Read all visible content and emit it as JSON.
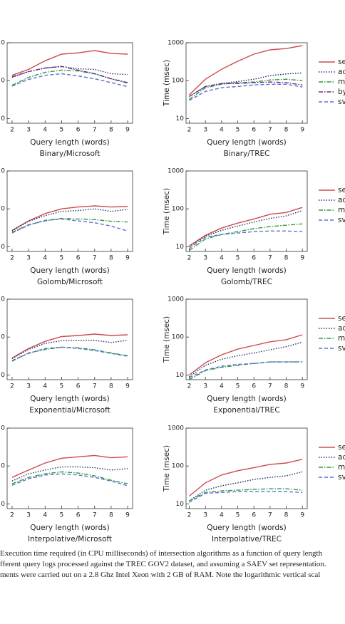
{
  "chart_data": [
    {
      "type": "line",
      "title": "Binary/Microsoft",
      "x_label": "Query length (words)",
      "x": [
        2,
        3,
        4,
        5,
        6,
        7,
        8,
        9
      ],
      "xlim": [
        1.7,
        9.3
      ],
      "xticks": [
        2,
        3,
        4,
        5,
        6,
        7,
        8,
        9
      ],
      "log_y": true,
      "ylim": [
        7.5,
        1000
      ],
      "yticks": [
        {
          "value": 1000,
          "label": "0"
        },
        {
          "value": 100,
          "label": "0"
        },
        {
          "value": 10,
          "label": "0"
        }
      ],
      "series": [
        {
          "color": "#cc4b4b",
          "style": "solid",
          "values": [
            138,
            198,
            334,
            500,
            540,
            620,
            520,
            500
          ]
        },
        {
          "color": "#1f2a66",
          "style": "dotted",
          "values": [
            122,
            173,
            215,
            236,
            206,
            198,
            152,
            145
          ]
        },
        {
          "color": "#2e9a3a",
          "style": "dashdot",
          "values": [
            75,
            122,
            165,
            189,
            180,
            152,
            112,
            86
          ]
        },
        {
          "color": "#6b2a8f",
          "style": "dashdot",
          "values": [
            127,
            173,
            215,
            236,
            189,
            152,
            112,
            89
          ]
        },
        {
          "color": "#5a6fd6",
          "style": "dashed",
          "values": [
            72,
            107,
            138,
            152,
            133,
            112,
            89,
            69
          ]
        }
      ]
    },
    {
      "type": "line",
      "title": "Binary/TREC",
      "x_label": "Query length (words)",
      "y_label": "Time (msec)",
      "x": [
        2,
        3,
        4,
        5,
        6,
        7,
        8,
        9
      ],
      "xlim": [
        1.8,
        9.3
      ],
      "xticks": [
        2,
        3,
        4,
        5,
        6,
        7,
        8,
        9
      ],
      "log_y": true,
      "ylim": [
        7.5,
        1000
      ],
      "yticks": [
        1000,
        100,
        10
      ],
      "series": [
        {
          "name": "se",
          "color": "#cc4b4b",
          "style": "solid",
          "values": [
            42,
            109,
            200,
            324,
            500,
            650,
            700,
            840
          ]
        },
        {
          "name": "ad",
          "color": "#1f2a66",
          "style": "dotted",
          "values": [
            38,
            70,
            84,
            95,
            109,
            136,
            150,
            160
          ]
        },
        {
          "name": "m",
          "color": "#2e9a3a",
          "style": "dashdot",
          "values": [
            32,
            65,
            80,
            88,
            92,
            104,
            109,
            100
          ]
        },
        {
          "name": "by",
          "color": "#6b2a8f",
          "style": "dashdot",
          "values": [
            38,
            70,
            84,
            84,
            88,
            92,
            88,
            77
          ]
        },
        {
          "name": "sv",
          "color": "#5a6fd6",
          "style": "dashed",
          "values": [
            30,
            52,
            65,
            70,
            77,
            80,
            80,
            68
          ]
        }
      ]
    },
    {
      "type": "line",
      "title": "Golomb/Microsoft",
      "x_label": "Query length (words)",
      "x": [
        2,
        3,
        4,
        5,
        6,
        7,
        8,
        9
      ],
      "xlim": [
        1.7,
        9.3
      ],
      "xticks": [
        2,
        3,
        4,
        5,
        6,
        7,
        8,
        9
      ],
      "log_y": true,
      "ylim": [
        7.5,
        1000
      ],
      "yticks": [
        {
          "value": 1000,
          "label": "0"
        },
        {
          "value": 100,
          "label": "0"
        },
        {
          "value": 10,
          "label": "0"
        }
      ],
      "series": [
        {
          "color": "#cc4b4b",
          "style": "solid",
          "values": [
            27,
            48,
            75,
            100,
            112,
            120,
            112,
            115
          ]
        },
        {
          "color": "#1f2a66",
          "style": "dotted",
          "values": [
            26,
            47,
            66,
            86,
            90,
            100,
            86,
            97
          ]
        },
        {
          "color": "#2e9a3a",
          "style": "dashdot",
          "values": [
            24,
            38,
            48,
            56,
            54,
            52,
            47,
            45
          ]
        },
        {
          "color": "#5a6fd6",
          "style": "dashed",
          "values": [
            23,
            37,
            50,
            54,
            48,
            43,
            35,
            26
          ]
        }
      ]
    },
    {
      "type": "line",
      "title": "Golomb/TREC",
      "x_label": "Query length (words)",
      "y_label": "Time (msec)",
      "x": [
        2,
        3,
        4,
        5,
        6,
        7,
        8,
        9
      ],
      "xlim": [
        1.8,
        9.3
      ],
      "xticks": [
        2,
        3,
        4,
        5,
        6,
        7,
        8,
        9
      ],
      "log_y": true,
      "ylim": [
        7.5,
        1000
      ],
      "yticks": [
        1000,
        100,
        10
      ],
      "series": [
        {
          "name": "se",
          "color": "#cc4b4b",
          "style": "solid",
          "values": [
            10.5,
            20,
            31,
            42,
            54,
            72,
            80,
            109
          ]
        },
        {
          "name": "ad",
          "color": "#1f2a66",
          "style": "dotted",
          "values": [
            10,
            19,
            27,
            35,
            45,
            56,
            65,
            90
          ]
        },
        {
          "name": "m",
          "color": "#2e9a3a",
          "style": "dashdot",
          "values": [
            8,
            16,
            21,
            25,
            30,
            34,
            37,
            40
          ]
        },
        {
          "name": "sv",
          "color": "#5a6fd6",
          "style": "dashed",
          "values": [
            9,
            18,
            21,
            23,
            25,
            26,
            26,
            25
          ]
        }
      ]
    },
    {
      "type": "line",
      "title": "Exponential/Microsoft",
      "x_label": "Query length (words)",
      "x": [
        2,
        3,
        4,
        5,
        6,
        7,
        8,
        9
      ],
      "xlim": [
        1.7,
        9.3
      ],
      "xticks": [
        2,
        3,
        4,
        5,
        6,
        7,
        8,
        9
      ],
      "log_y": true,
      "ylim": [
        7.5,
        1000
      ],
      "yticks": [
        {
          "value": 1000,
          "label": "0"
        },
        {
          "value": 100,
          "label": "0"
        },
        {
          "value": 10,
          "label": "0"
        }
      ],
      "series": [
        {
          "color": "#cc4b4b",
          "style": "solid",
          "values": [
            28,
            50,
            77,
            103,
            110,
            120,
            110,
            115
          ]
        },
        {
          "color": "#1f2a66",
          "style": "dotted",
          "values": [
            27,
            47,
            68,
            80,
            82,
            82,
            72,
            82
          ]
        },
        {
          "color": "#2e9a3a",
          "style": "dashdot",
          "values": [
            23,
            38,
            47,
            54,
            52,
            46,
            38,
            32
          ]
        },
        {
          "color": "#5a6fd6",
          "style": "dashed",
          "values": [
            24,
            37,
            50,
            54,
            50,
            44,
            37,
            31
          ]
        }
      ]
    },
    {
      "type": "line",
      "title": "Exponential/TREC",
      "x_label": "Query length (words)",
      "y_label": "Time (msec)",
      "x": [
        2,
        3,
        4,
        5,
        6,
        7,
        8,
        9
      ],
      "xlim": [
        1.8,
        9.3
      ],
      "xticks": [
        2,
        3,
        4,
        5,
        6,
        7,
        8,
        9
      ],
      "log_y": true,
      "ylim": [
        7.5,
        1000
      ],
      "yticks": [
        1000,
        100,
        10
      ],
      "series": [
        {
          "name": "se",
          "color": "#cc4b4b",
          "style": "solid",
          "values": [
            10,
            21,
            34,
            48,
            60,
            75,
            85,
            115
          ]
        },
        {
          "name": "ad",
          "color": "#1f2a66",
          "style": "dotted",
          "values": [
            9,
            18,
            26,
            32,
            38,
            46,
            56,
            73
          ]
        },
        {
          "name": "m",
          "color": "#2e9a3a",
          "style": "dashdot",
          "values": [
            7.5,
            13,
            16,
            18,
            20,
            22,
            22,
            22
          ]
        },
        {
          "name": "sv",
          "color": "#5a6fd6",
          "style": "dashed",
          "values": [
            8.5,
            13.5,
            17,
            19,
            20,
            22,
            22,
            22
          ]
        }
      ]
    },
    {
      "type": "line",
      "title": "Interpolative/Microsoft",
      "x_label": "Query length (words)",
      "x": [
        2,
        3,
        4,
        5,
        6,
        7,
        8,
        9
      ],
      "xlim": [
        1.7,
        9.3
      ],
      "xticks": [
        2,
        3,
        4,
        5,
        6,
        7,
        8,
        9
      ],
      "log_y": true,
      "ylim": [
        7.5,
        1000
      ],
      "yticks": [
        {
          "value": 1000,
          "label": "0"
        },
        {
          "value": 100,
          "label": "0"
        },
        {
          "value": 10,
          "label": "0"
        }
      ],
      "series": [
        {
          "color": "#cc4b4b",
          "style": "solid",
          "values": [
            50,
            78,
            120,
            160,
            175,
            190,
            165,
            175
          ]
        },
        {
          "color": "#1f2a66",
          "style": "dotted",
          "values": [
            40,
            62,
            78,
            95,
            95,
            90,
            78,
            85
          ]
        },
        {
          "color": "#2e9a3a",
          "style": "dashdot",
          "values": [
            34,
            50,
            62,
            70,
            65,
            55,
            42,
            34
          ]
        },
        {
          "color": "#5a6fd6",
          "style": "dashed",
          "values": [
            31,
            46,
            58,
            62,
            58,
            50,
            40,
            30
          ]
        }
      ]
    },
    {
      "type": "line",
      "title": "Interpolative/TREC",
      "x_label": "Query length (words)",
      "y_label": "Time (msec)",
      "x": [
        2,
        3,
        4,
        5,
        6,
        7,
        8,
        9
      ],
      "xlim": [
        1.8,
        9.3
      ],
      "xticks": [
        2,
        3,
        4,
        5,
        6,
        7,
        8,
        9
      ],
      "log_y": true,
      "ylim": [
        7.5,
        1000
      ],
      "yticks": [
        1000,
        100,
        10
      ],
      "series": [
        {
          "name": "se",
          "color": "#cc4b4b",
          "style": "solid",
          "values": [
            16,
            36,
            58,
            75,
            90,
            110,
            120,
            150
          ]
        },
        {
          "name": "ad",
          "color": "#1f2a66",
          "style": "dotted",
          "values": [
            12,
            23,
            30,
            36,
            44,
            50,
            55,
            70
          ]
        },
        {
          "name": "m",
          "color": "#2e9a3a",
          "style": "dashdot",
          "values": [
            12,
            20,
            22,
            23,
            24,
            25,
            25,
            23
          ]
        },
        {
          "name": "sv",
          "color": "#5a6fd6",
          "style": "dashed",
          "values": [
            11,
            19,
            20,
            21,
            21,
            21,
            21,
            20
          ]
        }
      ]
    }
  ],
  "caption": [
    "Execution time required (in CPU milliseconds) of intersection algorithms as a function of query length",
    "fferent query logs processed against the TREC GOV2 dataset, and assuming a SAEV set representation.",
    "ments were carried out on a 2.8 Ghz Intel Xeon with 2 GB of RAM. Note the logarithmic vertical scal"
  ]
}
